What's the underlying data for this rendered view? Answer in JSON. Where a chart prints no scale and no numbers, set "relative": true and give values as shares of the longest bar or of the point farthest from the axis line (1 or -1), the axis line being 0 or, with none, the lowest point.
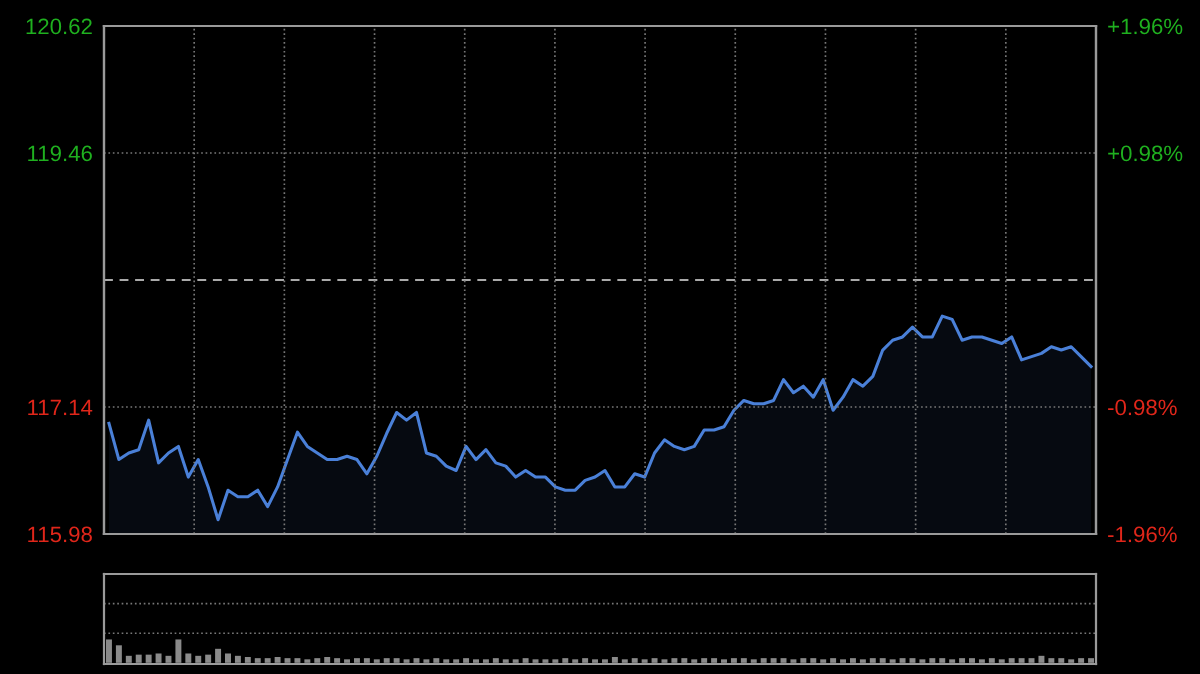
{
  "chart_data": [
    {
      "type": "area",
      "categories": [
        null,
        null,
        null,
        null,
        null,
        null,
        null,
        null,
        null,
        null,
        null,
        null,
        null,
        null,
        null,
        null,
        null,
        null,
        null,
        null,
        null,
        null,
        null,
        null,
        null,
        null,
        null,
        null,
        null,
        null,
        null,
        null,
        null,
        null,
        null,
        null,
        null,
        null,
        null,
        null,
        null,
        null,
        null,
        null,
        null,
        null,
        null,
        null,
        null,
        null,
        null,
        null,
        null,
        null,
        null,
        null,
        null,
        null,
        null,
        null,
        null,
        null,
        null,
        null,
        null,
        null,
        null,
        null,
        null,
        null,
        null,
        null,
        null,
        null,
        null,
        null,
        null,
        null,
        null,
        null,
        null,
        null,
        null,
        null,
        null,
        null,
        null,
        null,
        null,
        null,
        null,
        null,
        null,
        null,
        null,
        null,
        null,
        null,
        null,
        null
      ],
      "series": [
        {
          "color": "#4a80d8",
          "values": [
            116.99,
            116.66,
            116.72,
            116.75,
            117.02,
            116.63,
            116.72,
            116.78,
            116.5,
            116.66,
            116.41,
            116.11,
            116.38,
            116.32,
            116.32,
            116.38,
            116.23,
            116.41,
            116.66,
            116.91,
            116.78,
            116.72,
            116.66,
            116.66,
            116.69,
            116.66,
            116.53,
            116.69,
            116.9,
            117.09,
            117.02,
            117.09,
            116.72,
            116.69,
            116.6,
            116.56,
            116.78,
            116.66,
            116.75,
            116.63,
            116.6,
            116.5,
            116.56,
            116.5,
            116.5,
            116.41,
            116.38,
            116.38,
            116.47,
            116.5,
            116.56,
            116.41,
            116.41,
            116.53,
            116.5,
            116.72,
            116.84,
            116.78,
            116.75,
            116.78,
            116.93,
            116.93,
            116.96,
            117.11,
            117.2,
            117.17,
            117.17,
            117.2,
            117.39,
            117.27,
            117.33,
            117.23,
            117.39,
            117.11,
            117.23,
            117.39,
            117.33,
            117.42,
            117.66,
            117.75,
            117.78,
            117.87,
            117.78,
            117.78,
            117.97,
            117.94,
            117.75,
            117.78,
            117.78,
            117.75,
            117.72,
            117.78,
            117.57,
            117.6,
            117.63,
            117.69,
            117.66,
            117.69,
            117.6,
            117.51
          ]
        }
      ],
      "ylim": [
        115.98,
        120.62
      ],
      "yticks": [
        115.98,
        117.14,
        {
          "value": 118.3,
          "label": null
        },
        119.46,
        120.62
      ],
      "y2lim": [
        -1.96,
        1.96
      ],
      "y2ticks": [
        {
          "value": -1.96,
          "label": "-1.96%"
        },
        {
          "value": -0.98,
          "label": "-0.98%"
        },
        {
          "value": 0.98,
          "label": "+0.98%"
        },
        {
          "value": 1.96,
          "label": "+1.96%"
        }
      ],
      "ref_lines": [
        {
          "axis": "y",
          "value": 118.3,
          "line_style": "dashed",
          "color": "#aaaaaa"
        }
      ],
      "grid": true,
      "legend": false
    },
    {
      "type": "bar",
      "relative": true,
      "categories": [
        null,
        null,
        null,
        null,
        null,
        null,
        null,
        null,
        null,
        null,
        null,
        null,
        null,
        null,
        null,
        null,
        null,
        null,
        null,
        null,
        null,
        null,
        null,
        null,
        null,
        null,
        null,
        null,
        null,
        null,
        null,
        null,
        null,
        null,
        null,
        null,
        null,
        null,
        null,
        null,
        null,
        null,
        null,
        null,
        null,
        null,
        null,
        null,
        null,
        null,
        null,
        null,
        null,
        null,
        null,
        null,
        null,
        null,
        null,
        null,
        null,
        null,
        null,
        null,
        null,
        null,
        null,
        null,
        null,
        null,
        null,
        null,
        null,
        null,
        null,
        null,
        null,
        null,
        null,
        null,
        null,
        null,
        null,
        null,
        null,
        null,
        null,
        null,
        null,
        null,
        null,
        null,
        null,
        null,
        null,
        null,
        null,
        null,
        null,
        null
      ],
      "series": [
        {
          "color": "#8a8a8a",
          "values": [
            1.0,
            0.75,
            0.3,
            0.35,
            0.35,
            0.4,
            0.3,
            1.0,
            0.4,
            0.3,
            0.35,
            0.6,
            0.4,
            0.3,
            0.25,
            0.2,
            0.2,
            0.25,
            0.2,
            0.2,
            0.15,
            0.2,
            0.25,
            0.2,
            0.15,
            0.2,
            0.2,
            0.15,
            0.2,
            0.2,
            0.15,
            0.2,
            0.15,
            0.2,
            0.15,
            0.15,
            0.2,
            0.15,
            0.15,
            0.2,
            0.15,
            0.15,
            0.2,
            0.15,
            0.15,
            0.15,
            0.2,
            0.15,
            0.2,
            0.15,
            0.15,
            0.25,
            0.15,
            0.2,
            0.15,
            0.2,
            0.15,
            0.2,
            0.2,
            0.15,
            0.2,
            0.2,
            0.15,
            0.2,
            0.2,
            0.15,
            0.2,
            0.2,
            0.2,
            0.15,
            0.2,
            0.2,
            0.15,
            0.2,
            0.15,
            0.2,
            0.15,
            0.2,
            0.2,
            0.15,
            0.2,
            0.2,
            0.15,
            0.2,
            0.2,
            0.15,
            0.2,
            0.2,
            0.15,
            0.2,
            0.15,
            0.2,
            0.2,
            0.2,
            0.3,
            0.2,
            0.2,
            0.15,
            0.2,
            0.2
          ]
        }
      ]
    }
  ]
}
